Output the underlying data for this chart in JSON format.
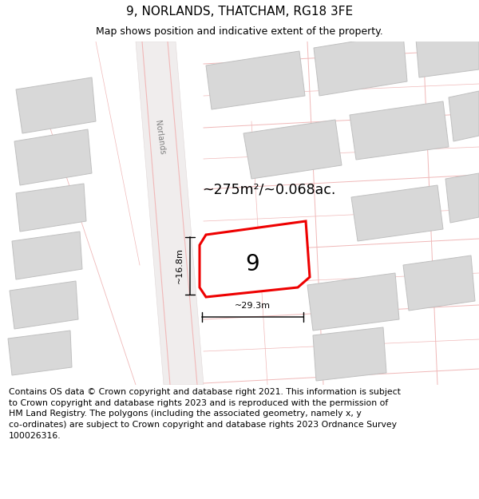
{
  "title": "9, NORLANDS, THATCHAM, RG18 3FE",
  "subtitle": "Map shows position and indicative extent of the property.",
  "footer_text": "Contains OS data © Crown copyright and database right 2021. This information is subject\nto Crown copyright and database rights 2023 and is reproduced with the permission of\nHM Land Registry. The polygons (including the associated geometry, namely x, y\nco-ordinates) are subject to Crown copyright and database rights 2023 Ordnance Survey\n100026316.",
  "area_label": "~275m²/~0.068ac.",
  "width_label": "~29.3m",
  "height_label": "~16.8m",
  "plot_number": "9",
  "title_fontsize": 11,
  "subtitle_fontsize": 9,
  "footer_fontsize": 7.8,
  "map_bg": "#f5f0f0",
  "building_fill": "#d8d8d8",
  "building_edge": "#c0c0c0",
  "road_fill": "#eee8e8",
  "red_plot_color": "#ee0000",
  "light_red": "#f0b8b8",
  "road_text_color": "#808080"
}
